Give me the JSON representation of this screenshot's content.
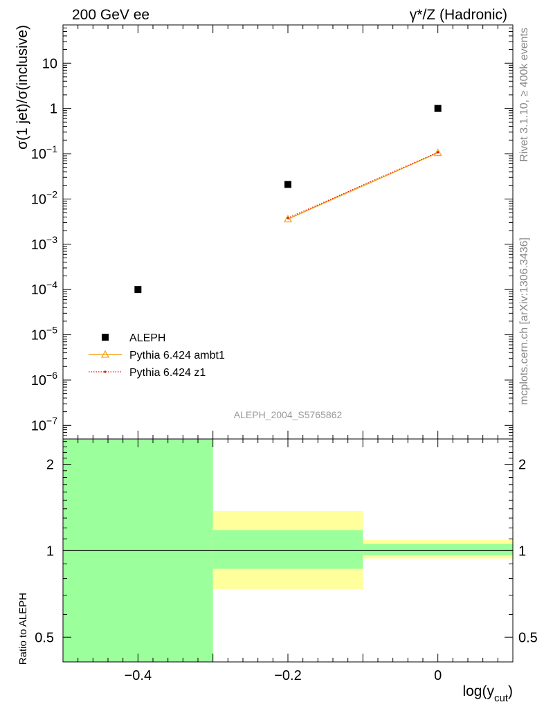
{
  "header": {
    "left_label": "200 GeV ee",
    "right_label": "γ*/Z (Hadronic)"
  },
  "side_labels": {
    "rivet": "Rivet 3.1.10, ≥ 400k events",
    "mcplots": "mcplots.cern.ch [arXiv:1306.3436]"
  },
  "analysis_id": "ALEPH_2004_S5765862",
  "colors": {
    "data": "#000000",
    "ambt1": "#f5a623",
    "z1": "#e8120c",
    "band_inner": "#9bff9b",
    "band_outer": "#ffff9b"
  },
  "chart_data": [
    {
      "type": "scatter",
      "panel": "main",
      "ylabel": "σ(1 jet)/σ(inclusive)",
      "yscale": "log",
      "xlim": [
        -0.5,
        0.1
      ],
      "ylim": [
        5e-08,
        70
      ],
      "y_ticks": [
        "10^-7",
        "10^-6",
        "10^-5",
        "10^-4",
        "10^-3",
        "10^-2",
        "10^-1",
        "1",
        "10"
      ],
      "legend": {
        "position": "bottom-left"
      },
      "series": [
        {
          "name": "ALEPH",
          "marker": "square",
          "points": [
            {
              "x": -0.4,
              "y": 0.0001
            },
            {
              "x": -0.2,
              "y": 0.021
            },
            {
              "x": 0.0,
              "y": 1.0
            }
          ]
        },
        {
          "name": "Pythia 6.424 ambt1",
          "marker": "open-triangle",
          "line": "solid",
          "points": [
            {
              "x": -0.2,
              "y": 0.0036
            },
            {
              "x": 0.0,
              "y": 0.105
            }
          ]
        },
        {
          "name": "Pythia 6.424 z1",
          "marker": "dot",
          "line": "dotted",
          "points": [
            {
              "x": -0.2,
              "y": 0.0038
            },
            {
              "x": 0.0,
              "y": 0.108
            }
          ]
        }
      ]
    },
    {
      "type": "area",
      "panel": "ratio",
      "xlabel": "log(y_cut)",
      "ylabel": "Ratio to ALEPH",
      "yscale": "log",
      "xlim": [
        -0.5,
        0.1
      ],
      "ylim": [
        0.41,
        2.45
      ],
      "x_ticks": [
        "−0.4",
        "−0.2",
        "0"
      ],
      "y_ticks": [
        "0.5",
        "1",
        "2"
      ],
      "reference_line": 1,
      "bands": [
        {
          "x_low": -0.5,
          "x_high": -0.3,
          "inner_low": 0.41,
          "inner_high": 2.45,
          "outer_low": 0.41,
          "outer_high": 2.45
        },
        {
          "x_low": -0.3,
          "x_high": -0.1,
          "inner_low": 0.865,
          "inner_high": 1.18,
          "outer_low": 0.735,
          "outer_high": 1.375
        },
        {
          "x_low": -0.1,
          "x_high": 0.1,
          "inner_low": 0.965,
          "inner_high": 1.055,
          "outer_low": 0.94,
          "outer_high": 1.09
        }
      ]
    }
  ]
}
